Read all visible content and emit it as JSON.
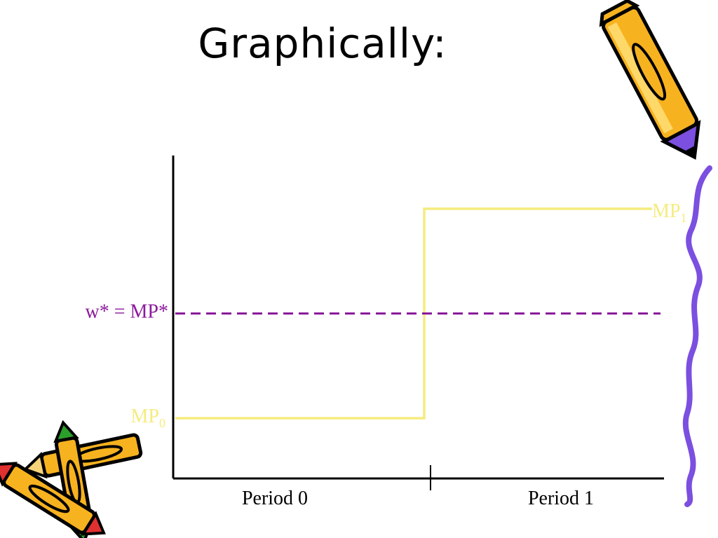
{
  "slide": {
    "title": "Graphically:"
  },
  "colors": {
    "curve": "#f5ec7e",
    "wage_line": "#8b1a9b",
    "axis": "#000000",
    "pencil_body": "#f7b21f",
    "pencil_purple": "#7b4fe0",
    "pencil_red": "#e03030",
    "pencil_green": "#2aa02a",
    "wave": "#7b4fe0"
  },
  "icons": [
    "pencil-icon",
    "crossed-pencils-icon",
    "wavy-line-decoration"
  ],
  "chart_data": {
    "type": "line",
    "title": "",
    "xlabel": "",
    "ylabel": "",
    "grid": false,
    "categories": [
      "Period 0",
      "Period 1"
    ],
    "series": [
      {
        "label_main": "MP",
        "label_sub_0": "0",
        "label_sub_1": "1",
        "values": [
          0,
          1
        ],
        "step": true
      }
    ],
    "reference_line": {
      "label": "w* = MP*",
      "value": 0.5,
      "style": "dashed"
    }
  }
}
